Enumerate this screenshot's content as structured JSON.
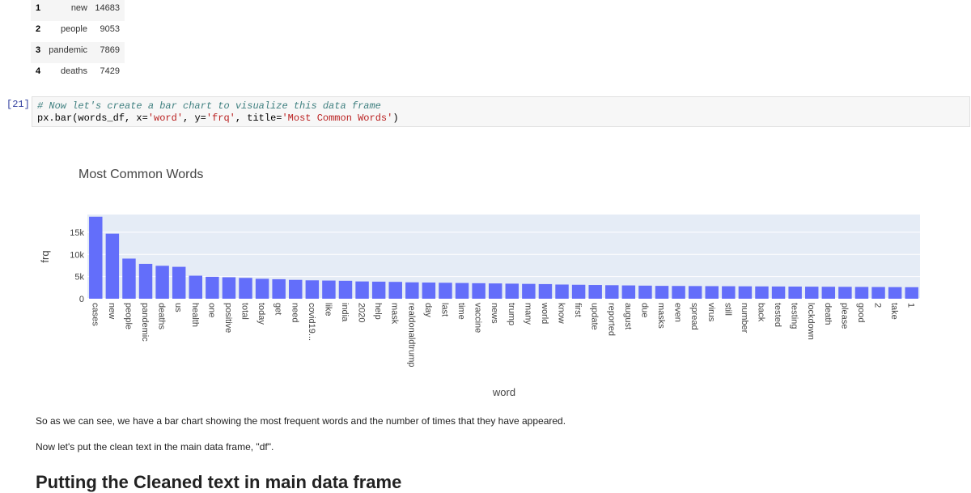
{
  "dataframe": {
    "rows": [
      {
        "index": "1",
        "word": "new",
        "frq": "14683"
      },
      {
        "index": "2",
        "word": "people",
        "frq": "9053"
      },
      {
        "index": "3",
        "word": "pandemic",
        "frq": "7869"
      },
      {
        "index": "4",
        "word": "deaths",
        "frq": "7429"
      }
    ]
  },
  "cell": {
    "prompt": "[21]:",
    "comment": "# Now let's create a bar chart to visualize this data frame",
    "code_prefix": "px.bar(words_df, x=",
    "code_x": "'word'",
    "code_mid1": ", y=",
    "code_y": "'frq'",
    "code_mid2": ", title=",
    "code_title": "'Most Common Words'",
    "code_suffix": ")"
  },
  "chart_data": {
    "type": "bar",
    "title": "Most Common Words",
    "xlabel": "word",
    "ylabel": "frq",
    "ylim": [
      0,
      19000
    ],
    "yticks": [
      0,
      5000,
      10000,
      15000
    ],
    "ytick_labels": [
      "0",
      "5k",
      "10k",
      "15k"
    ],
    "grid": true,
    "bar_color": "#636efa",
    "plot_bg": "#e5ecf6",
    "categories": [
      "cases",
      "new",
      "people",
      "pandemic",
      "deaths",
      "us",
      "health",
      "one",
      "positive",
      "total",
      "today",
      "get",
      "need",
      "covid19...",
      "like",
      "india",
      "2020",
      "help",
      "mask",
      "realdonaldtrump",
      "day",
      "last",
      "time",
      "vaccine",
      "news",
      "trump",
      "many",
      "world",
      "know",
      "first",
      "update",
      "reported",
      "august",
      "due",
      "masks",
      "even",
      "spread",
      "virus",
      "still",
      "number",
      "back",
      "tested",
      "testing",
      "lockdown",
      "death",
      "please",
      "good",
      "2",
      "take",
      "1"
    ],
    "values": [
      18500,
      14683,
      9053,
      7869,
      7429,
      7200,
      5200,
      4950,
      4850,
      4700,
      4500,
      4400,
      4250,
      4150,
      4100,
      4050,
      3900,
      3850,
      3800,
      3700,
      3650,
      3600,
      3550,
      3500,
      3450,
      3400,
      3350,
      3300,
      3200,
      3150,
      3100,
      3050,
      3000,
      2950,
      2900,
      2880,
      2860,
      2840,
      2820,
      2800,
      2780,
      2760,
      2740,
      2720,
      2700,
      2680,
      2660,
      2640,
      2620,
      2600
    ]
  },
  "markdown": {
    "p1": "So as we can see, we have a bar chart showing the most frequent words and the number of times that they have appeared.",
    "p2": "Now let's put the clean text in the main data frame, \"df\".",
    "heading": "Putting the Cleaned text in main data frame"
  }
}
